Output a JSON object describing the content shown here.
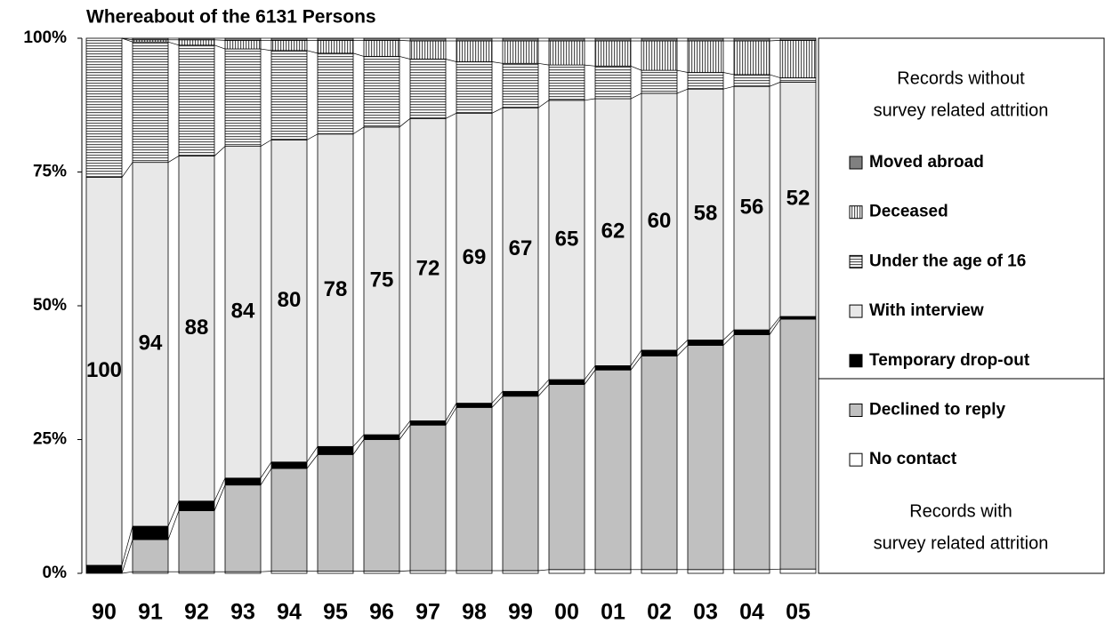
{
  "chart_data": {
    "type": "stacked_bar",
    "title": "Whereabout of the 6131 Persons",
    "categories": [
      "90",
      "91",
      "92",
      "93",
      "94",
      "95",
      "96",
      "97",
      "98",
      "99",
      "00",
      "01",
      "02",
      "03",
      "04",
      "05"
    ],
    "series": [
      {
        "name": "No contact",
        "color": "#ffffff",
        "values": [
          0,
          0.3,
          0.3,
          0.3,
          0.4,
          0.4,
          0.4,
          0.5,
          0.5,
          0.5,
          0.7,
          0.7,
          0.7,
          0.7,
          0.7,
          0.8
        ]
      },
      {
        "name": "Declined to reply",
        "color": "#c0c0c0",
        "values": [
          0,
          6,
          11.4,
          16.2,
          19.2,
          21.8,
          24.6,
          27.2,
          30.5,
          32.6,
          34.6,
          37.3,
          39.9,
          41.9,
          43.9,
          46.7
        ]
      },
      {
        "name": "Temporary drop-out",
        "color": "#000000",
        "values": [
          1.5,
          2.5,
          1.8,
          1.3,
          1.2,
          1.5,
          0.9,
          0.8,
          0.8,
          0.9,
          0.9,
          0.8,
          1.1,
          1,
          0.9,
          0.5
        ]
      },
      {
        "name": "With interview",
        "color": "#e8e8e8",
        "values": [
          72.5,
          68,
          64.5,
          62,
          60.2,
          58.4,
          57.5,
          56.5,
          54.2,
          53,
          52.2,
          49.9,
          48,
          46.9,
          45.5,
          43.8
        ]
      },
      {
        "name": "Under the age of 16",
        "color": "hstripe",
        "values": [
          26,
          22.5,
          20.7,
          18.2,
          16.7,
          15.1,
          13.2,
          11.1,
          9.6,
          8.3,
          6.6,
          6.1,
          4.3,
          3.1,
          2.2,
          0.8
        ]
      },
      {
        "name": "Deceased",
        "color": "vstripe",
        "values": [
          0,
          0.4,
          1,
          1.6,
          1.9,
          2.4,
          3,
          3.4,
          3.9,
          4.2,
          4.5,
          4.7,
          5.5,
          5.9,
          6.3,
          7
        ]
      },
      {
        "name": "Moved abroad",
        "color": "#808080",
        "values": [
          0,
          0.3,
          0.3,
          0.4,
          0.4,
          0.4,
          0.4,
          0.5,
          0.5,
          0.5,
          0.5,
          0.5,
          0.5,
          0.5,
          0.5,
          0.4
        ]
      }
    ],
    "interview_labels": [
      100,
      94,
      88,
      84,
      80,
      78,
      75,
      72,
      69,
      67,
      65,
      62,
      60,
      58,
      56,
      52
    ],
    "ylim": [
      0,
      100
    ],
    "yticks": [
      {
        "value": 0,
        "label": "0%"
      },
      {
        "value": 25,
        "label": "25%"
      },
      {
        "value": 50,
        "label": "50%"
      },
      {
        "value": 75,
        "label": "75%"
      },
      {
        "value": 100,
        "label": "100%"
      }
    ],
    "legend_top": [
      "Records without",
      "survey related attrition"
    ],
    "legend_bottom": [
      "Records with",
      "survey related attrition"
    ]
  }
}
